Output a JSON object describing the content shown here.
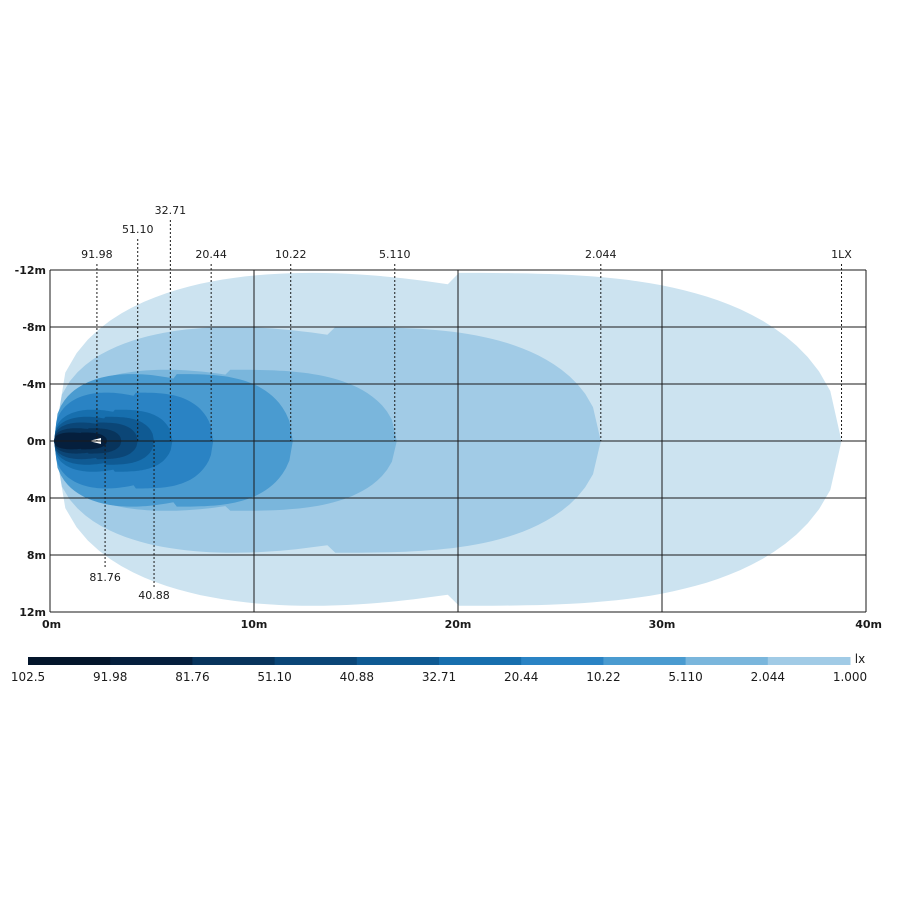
{
  "chart_data": {
    "type": "area",
    "x_axis": {
      "ticks": [
        "0m",
        "10m",
        "20m",
        "30m",
        "40m"
      ],
      "range": [
        0,
        40
      ]
    },
    "y_axis": {
      "ticks": [
        "-12m",
        "-8m",
        "-4m",
        "0m",
        "4m",
        "8m",
        "12m"
      ],
      "range": [
        -12,
        12
      ]
    },
    "grid": true,
    "isolux_contours": [
      {
        "value": "1.000",
        "reach_m": 38.8,
        "half_width_m": 11.8,
        "color": "#cce3f0"
      },
      {
        "value": "2.044",
        "reach_m": 27.0,
        "half_width_m": 8.0,
        "color": "#a1cbe6"
      },
      {
        "value": "5.110",
        "reach_m": 17.0,
        "half_width_m": 5.0,
        "color": "#7ab6dc"
      },
      {
        "value": "10.22",
        "reach_m": 11.9,
        "half_width_m": 4.7,
        "color": "#4a9bd0"
      },
      {
        "value": "20.44",
        "reach_m": 8.0,
        "half_width_m": 3.4,
        "color": "#2a83c4"
      },
      {
        "value": "32.71",
        "reach_m": 6.0,
        "half_width_m": 2.2,
        "color": "#176fae"
      },
      {
        "value": "40.88",
        "reach_m": 5.1,
        "half_width_m": 1.7,
        "color": "#0f5a93"
      },
      {
        "value": "51.10",
        "reach_m": 4.3,
        "half_width_m": 1.3,
        "color": "#0b4677"
      },
      {
        "value": "81.76",
        "reach_m": 3.5,
        "half_width_m": 0.9,
        "color": "#08345c"
      },
      {
        "value": "91.98",
        "reach_m": 2.8,
        "half_width_m": 0.6,
        "color": "#051f3d"
      }
    ],
    "top_labels": [
      {
        "text": "91.98",
        "x_m": 2.3,
        "row": 0
      },
      {
        "text": "51.10",
        "x_m": 4.3,
        "row": 1
      },
      {
        "text": "32.71",
        "x_m": 5.9,
        "row": 2
      },
      {
        "text": "20.44",
        "x_m": 7.9,
        "row": 0
      },
      {
        "text": "10.22",
        "x_m": 11.8,
        "row": 0
      },
      {
        "text": "5.110",
        "x_m": 16.9,
        "row": 0
      },
      {
        "text": "2.044",
        "x_m": 27.0,
        "row": 0
      },
      {
        "text": "1LX",
        "x_m": 38.8,
        "row": 0
      }
    ],
    "bottom_labels": [
      {
        "text": "81.76",
        "x_m": 2.7,
        "row": 0
      },
      {
        "text": "40.88",
        "x_m": 5.1,
        "row": 1
      }
    ],
    "legend": {
      "unit": "lx",
      "labels": [
        "102.5",
        "91.98",
        "81.76",
        "51.10",
        "40.88",
        "32.71",
        "20.44",
        "10.22",
        "5.110",
        "2.044",
        "1.000"
      ],
      "colors": [
        "#03152b",
        "#051f3d",
        "#08345c",
        "#0b4677",
        "#0f5a93",
        "#176fae",
        "#2a83c4",
        "#4a9bd0",
        "#7ab6dc",
        "#a1cbe6",
        "#cce3f0"
      ]
    }
  }
}
